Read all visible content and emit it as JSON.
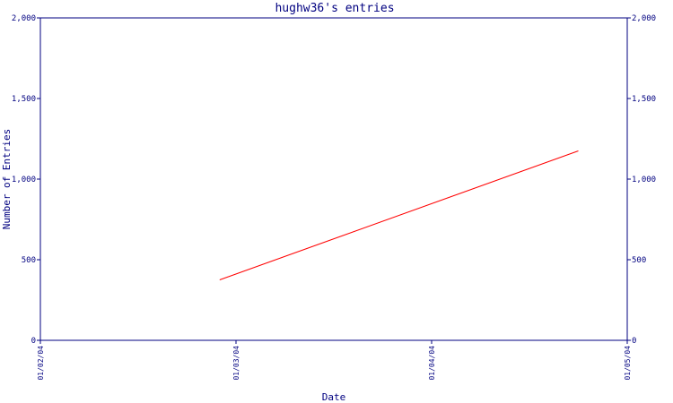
{
  "chart_data": {
    "type": "line",
    "title": "hughw36's entries",
    "xlabel": "Date",
    "ylabel": "Number of Entries",
    "x_ticks": [
      "01/02/04",
      "01/03/04",
      "01/04/04",
      "01/05/04"
    ],
    "y_ticks": [
      "0",
      "500",
      "1,000",
      "1,500",
      "2,000"
    ],
    "ylim": [
      0,
      2000
    ],
    "xlim": [
      "2004-01-02",
      "2004-01-05"
    ],
    "grid": false,
    "series": [
      {
        "points": [
          {
            "x": "2004-01-02T22:00",
            "y": 375
          },
          {
            "x": "2004-01-04T18:00",
            "y": 1175
          }
        ],
        "color": "#ff0000"
      }
    ],
    "colors": {
      "axis": "#000080",
      "text": "#000080",
      "line": "#ff0000"
    }
  }
}
